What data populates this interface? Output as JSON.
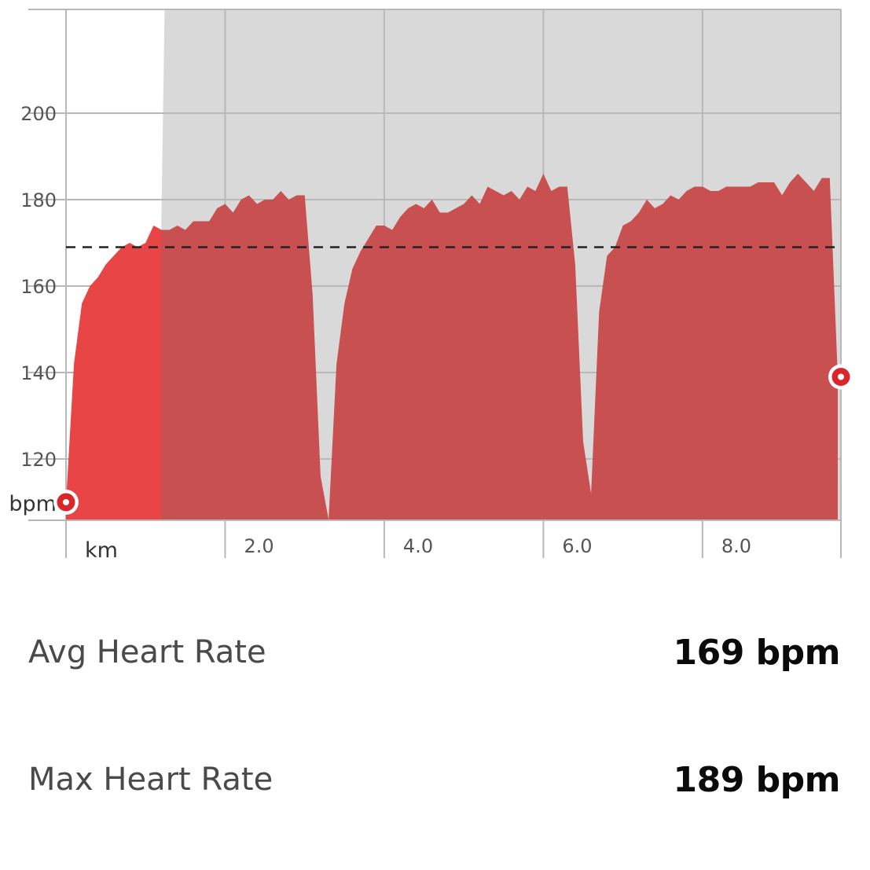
{
  "chart_data": {
    "type": "area",
    "xlabel": "km",
    "ylabel": "bpm",
    "x_ticks": [
      2.0,
      4.0,
      6.0,
      8.0
    ],
    "x_tick_labels": [
      "2.0",
      "4.0",
      "6.0",
      "8.0"
    ],
    "y_ticks": [
      120,
      140,
      160,
      180,
      200
    ],
    "y_tick_labels": [
      "120",
      "140",
      "160",
      "180",
      "200"
    ],
    "xlim": [
      0,
      9.74
    ],
    "ylim": [
      106,
      224
    ],
    "grid": true,
    "average_line": 169,
    "highlight_until_x": 1.2,
    "colors": {
      "area_highlight": "#e84646",
      "area": "#c85050",
      "background_shade": "#d9d9d9",
      "grid": "#b8b8b8",
      "average_line": "#222222",
      "marker": "#d9262b"
    },
    "series": [
      {
        "x": [
          0,
          0.1,
          0.2,
          0.3,
          0.4,
          0.5,
          0.6,
          0.7,
          0.8,
          0.9,
          1.0,
          1.1,
          1.2,
          1.3,
          1.4,
          1.5,
          1.6,
          1.7,
          1.8,
          1.9,
          2.0,
          2.1,
          2.2,
          2.3,
          2.4,
          2.5,
          2.6,
          2.7,
          2.8,
          2.9,
          3.0,
          3.1,
          3.2,
          3.3,
          3.4,
          3.5,
          3.6,
          3.7,
          3.8,
          3.9,
          4.0,
          4.1,
          4.2,
          4.3,
          4.4,
          4.5,
          4.6,
          4.7,
          4.8,
          4.9,
          5.0,
          5.1,
          5.2,
          5.3,
          5.4,
          5.5,
          5.6,
          5.7,
          5.8,
          5.9,
          6.0,
          6.1,
          6.2,
          6.3,
          6.4,
          6.5,
          6.6,
          6.7,
          6.8,
          6.9,
          7.0,
          7.1,
          7.2,
          7.3,
          7.4,
          7.5,
          7.6,
          7.7,
          7.8,
          7.9,
          8.0,
          8.1,
          8.2,
          8.3,
          8.4,
          8.5,
          8.6,
          8.7,
          8.8,
          8.9,
          9.0,
          9.1,
          9.2,
          9.3,
          9.4,
          9.5,
          9.6,
          9.7
        ],
        "y": [
          110,
          142,
          156,
          160,
          162,
          165,
          167,
          169,
          170,
          169,
          170,
          174,
          173,
          173,
          174,
          173,
          175,
          175,
          175,
          178,
          179,
          177,
          180,
          181,
          179,
          180,
          180,
          182,
          180,
          181,
          181,
          158,
          116,
          106,
          142,
          156,
          164,
          168,
          171,
          174,
          174,
          173,
          176,
          178,
          179,
          178,
          180,
          177,
          177,
          178,
          179,
          181,
          179,
          183,
          182,
          181,
          182,
          180,
          183,
          182,
          186,
          182,
          183,
          183,
          165,
          124,
          112,
          154,
          167,
          169,
          174,
          175,
          177,
          180,
          178,
          179,
          181,
          180,
          182,
          183,
          183,
          182,
          182,
          183,
          183,
          183,
          183,
          184,
          184,
          184,
          181,
          184,
          186,
          184,
          182,
          185,
          185,
          139
        ]
      }
    ],
    "start_value": 110,
    "end_value": 139
  },
  "stats": {
    "avg_label": "Avg Heart Rate",
    "avg_value": "169 bpm",
    "max_label": "Max Heart Rate",
    "max_value": "189 bpm"
  }
}
